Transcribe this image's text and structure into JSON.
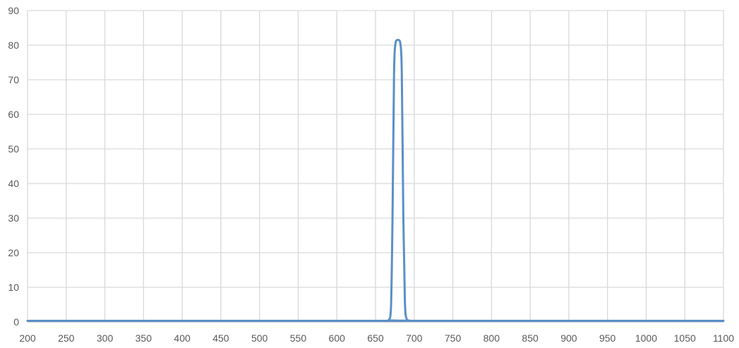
{
  "chart_data": {
    "type": "line",
    "title": "",
    "xlabel": "",
    "ylabel": "",
    "xlim": [
      200,
      1100
    ],
    "ylim": [
      0,
      90
    ],
    "x_ticks": [
      "200",
      "250",
      "300",
      "350",
      "400",
      "450",
      "500",
      "550",
      "600",
      "650",
      "700",
      "750",
      "800",
      "850",
      "900",
      "950",
      "1000",
      "1050",
      "1100"
    ],
    "y_ticks": [
      "0",
      "10",
      "20",
      "30",
      "40",
      "50",
      "60",
      "70",
      "80",
      "90"
    ],
    "grid": true,
    "legend": "none",
    "series": [
      {
        "color": "#5b8fc7",
        "x": [
          200,
          660,
          667,
          670,
          672,
          674,
          676,
          678,
          680,
          682,
          684,
          686,
          688,
          690,
          693,
          700,
          1100
        ],
        "y": [
          0.3,
          0.3,
          0.5,
          4,
          30,
          72,
          80.8,
          81.5,
          81.5,
          80.8,
          72,
          30,
          6,
          1,
          0.4,
          0.3,
          0.3
        ]
      }
    ]
  }
}
